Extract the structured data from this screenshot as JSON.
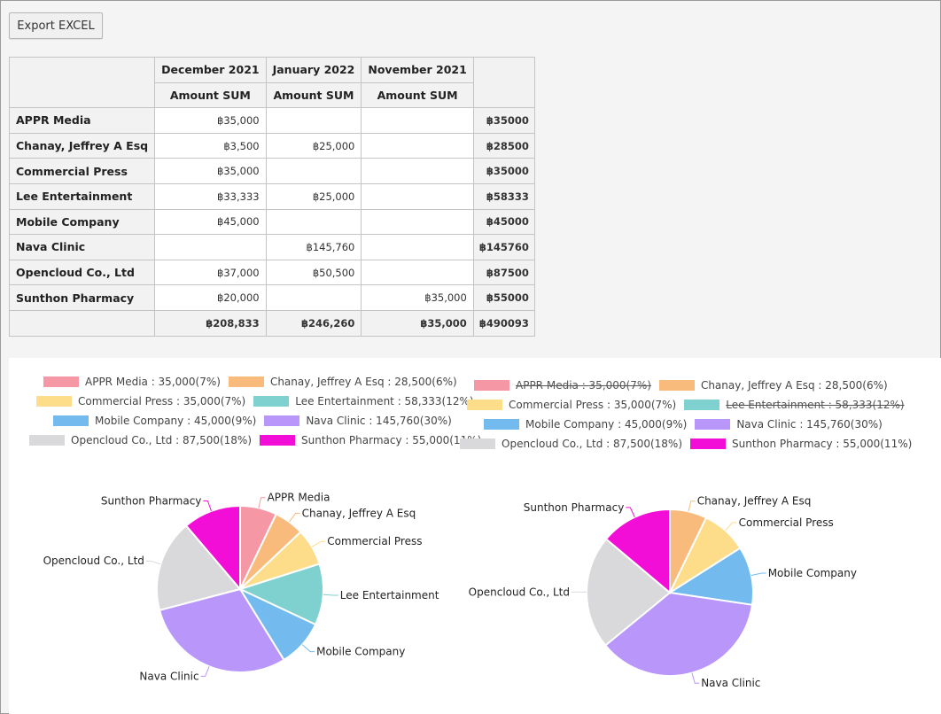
{
  "toolbar": {
    "export_label": "Export EXCEL"
  },
  "table": {
    "columns": [
      {
        "name": "December 2021",
        "measure": "Amount SUM"
      },
      {
        "name": "January 2022",
        "measure": "Amount SUM"
      },
      {
        "name": "November 2021",
        "measure": "Amount SUM"
      }
    ],
    "rows": [
      {
        "label": "APPR Media",
        "cells": [
          "฿35,000",
          "",
          ""
        ],
        "total": "฿35000"
      },
      {
        "label": "Chanay, Jeffrey A Esq",
        "cells": [
          "฿3,500",
          "฿25,000",
          ""
        ],
        "total": "฿28500"
      },
      {
        "label": "Commercial Press",
        "cells": [
          "฿35,000",
          "",
          ""
        ],
        "total": "฿35000"
      },
      {
        "label": "Lee Entertainment",
        "cells": [
          "฿33,333",
          "฿25,000",
          ""
        ],
        "total": "฿58333"
      },
      {
        "label": "Mobile Company",
        "cells": [
          "฿45,000",
          "",
          ""
        ],
        "total": "฿45000"
      },
      {
        "label": "Nava Clinic",
        "cells": [
          "",
          "฿145,760",
          ""
        ],
        "total": "฿145760"
      },
      {
        "label": "Opencloud Co., Ltd",
        "cells": [
          "฿37,000",
          "฿50,500",
          ""
        ],
        "total": "฿87500"
      },
      {
        "label": "Sunthon Pharmacy",
        "cells": [
          "฿20,000",
          "",
          "฿35,000"
        ],
        "total": "฿55000"
      }
    ],
    "grand": {
      "cells": [
        "฿208,833",
        "฿246,260",
        "฿35,000"
      ],
      "total": "฿490093"
    }
  },
  "colors": {
    "APPR Media": "#f697a6",
    "Chanay, Jeffrey A Esq": "#f8bb7b",
    "Commercial Press": "#fddd8a",
    "Lee Entertainment": "#7fd1cf",
    "Mobile Company": "#73bbee",
    "Nava Clinic": "#b896fa",
    "Opencloud Co., Ltd": "#d9d9dc",
    "Sunthon Pharmacy": "#f20ed6"
  },
  "chart_data": [
    {
      "type": "pie",
      "legend_placement": "top",
      "slices": [
        {
          "label": "APPR Media",
          "value": 35000,
          "legend": "APPR Media : 35,000(7%)",
          "hidden": false
        },
        {
          "label": "Chanay, Jeffrey A Esq",
          "value": 28500,
          "legend": "Chanay, Jeffrey A Esq : 28,500(6%)",
          "hidden": false
        },
        {
          "label": "Commercial Press",
          "value": 35000,
          "legend": "Commercial Press : 35,000(7%)",
          "hidden": false
        },
        {
          "label": "Lee Entertainment",
          "value": 58333,
          "legend": "Lee Entertainment : 58,333(12%)",
          "hidden": false
        },
        {
          "label": "Mobile Company",
          "value": 45000,
          "legend": "Mobile Company : 45,000(9%)",
          "hidden": false
        },
        {
          "label": "Nava Clinic",
          "value": 145760,
          "legend": "Nava Clinic : 145,760(30%)",
          "hidden": false
        },
        {
          "label": "Opencloud Co., Ltd",
          "value": 87500,
          "legend": "Opencloud Co., Ltd : 87,500(18%)",
          "hidden": false
        },
        {
          "label": "Sunthon Pharmacy",
          "value": 55000,
          "legend": "Sunthon Pharmacy : 55,000(11%)",
          "hidden": false
        }
      ]
    },
    {
      "type": "pie",
      "legend_placement": "top",
      "slices": [
        {
          "label": "APPR Media",
          "value": 35000,
          "legend": "APPR Media : 35,000(7%)",
          "hidden": true
        },
        {
          "label": "Chanay, Jeffrey A Esq",
          "value": 28500,
          "legend": "Chanay, Jeffrey A Esq : 28,500(6%)",
          "hidden": false
        },
        {
          "label": "Commercial Press",
          "value": 35000,
          "legend": "Commercial Press : 35,000(7%)",
          "hidden": false
        },
        {
          "label": "Lee Entertainment",
          "value": 58333,
          "legend": "Lee Entertainment : 58,333(12%)",
          "hidden": true
        },
        {
          "label": "Mobile Company",
          "value": 45000,
          "legend": "Mobile Company : 45,000(9%)",
          "hidden": false
        },
        {
          "label": "Nava Clinic",
          "value": 145760,
          "legend": "Nava Clinic : 145,760(30%)",
          "hidden": false
        },
        {
          "label": "Opencloud Co., Ltd",
          "value": 87500,
          "legend": "Opencloud Co., Ltd : 87,500(18%)",
          "hidden": false
        },
        {
          "label": "Sunthon Pharmacy",
          "value": 55000,
          "legend": "Sunthon Pharmacy : 55,000(11%)",
          "hidden": false
        }
      ]
    }
  ]
}
